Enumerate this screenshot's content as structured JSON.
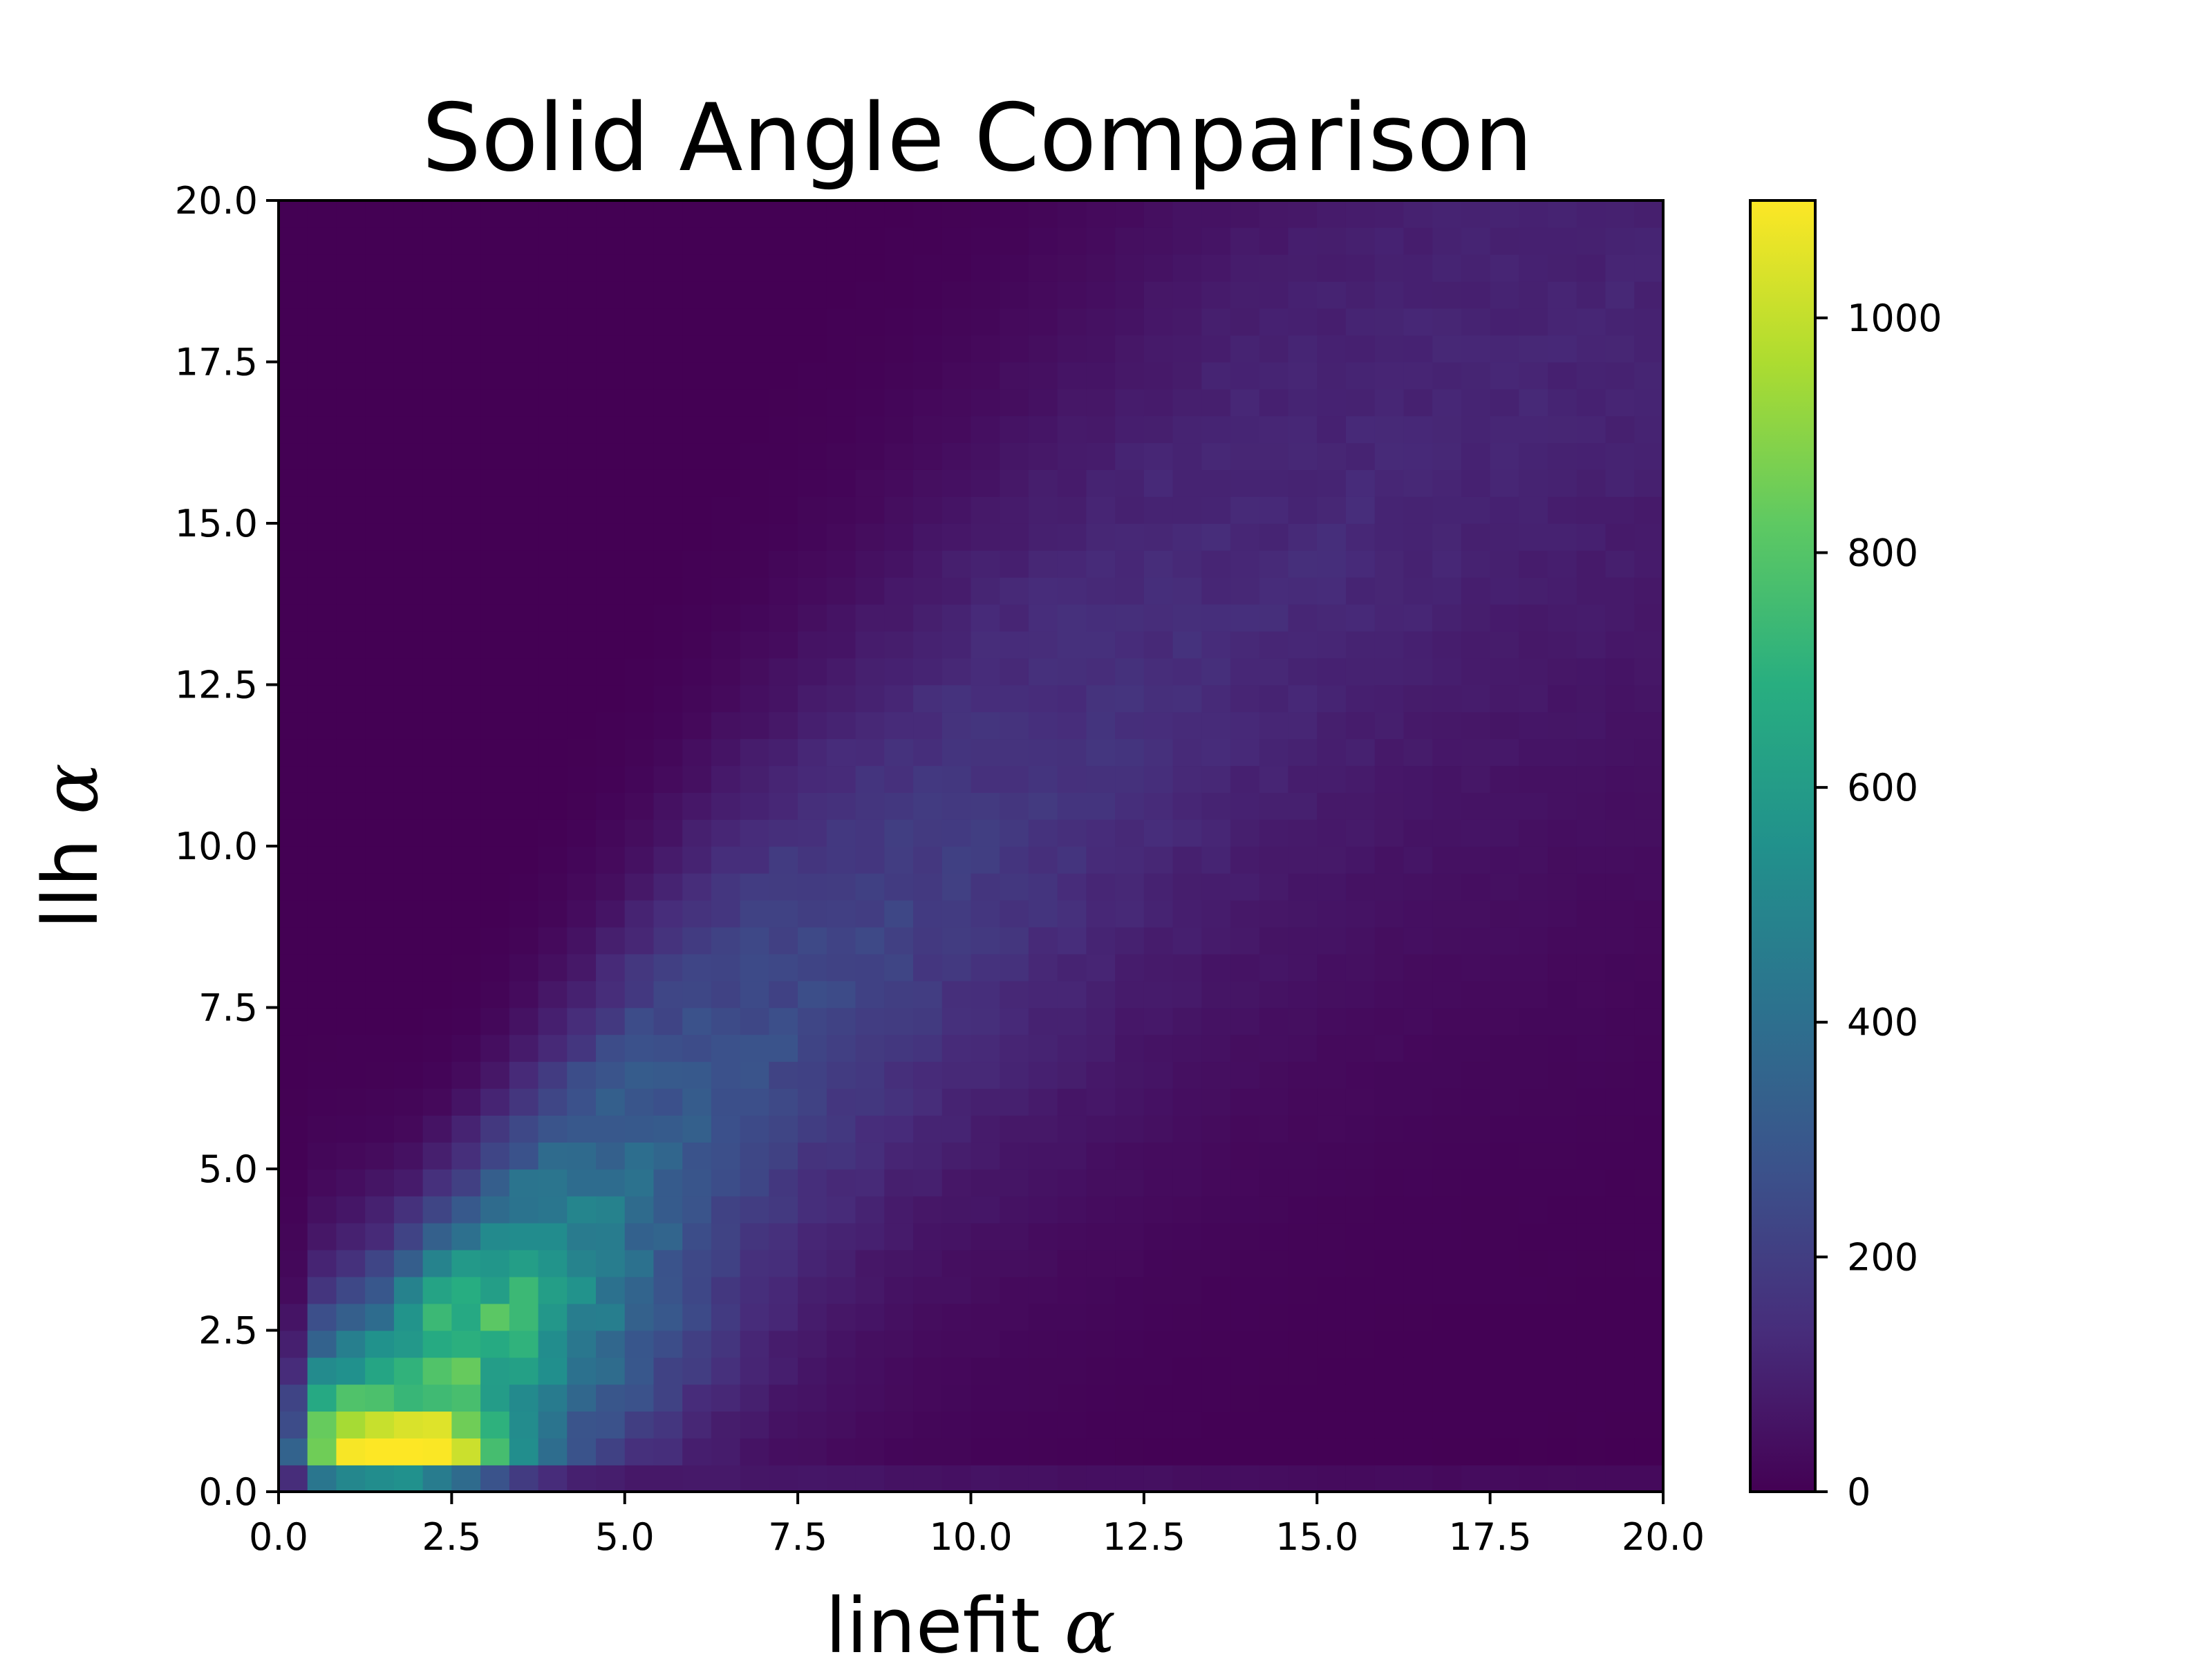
{
  "chart_data": {
    "type": "heatmap",
    "title": "Solid Angle Comparison",
    "xlabel_text": "linefit ",
    "ylabel_text": "llh ",
    "symbol": "α",
    "xlim": [
      0,
      20
    ],
    "ylim": [
      0,
      20
    ],
    "bins": 48,
    "colormap": "viridis",
    "color_range": [
      0,
      1100
    ],
    "x_ticks": [
      "0.0",
      "2.5",
      "5.0",
      "7.5",
      "10.0",
      "12.5",
      "15.0",
      "17.5",
      "20.0"
    ],
    "y_ticks": [
      "0.0",
      "2.5",
      "5.0",
      "7.5",
      "10.0",
      "12.5",
      "15.0",
      "17.5",
      "20.0"
    ],
    "colorbar_ticks": [
      {
        "value": 0,
        "label": "0"
      },
      {
        "value": 200,
        "label": "200"
      },
      {
        "value": 400,
        "label": "400"
      },
      {
        "value": 600,
        "label": "600"
      },
      {
        "value": 800,
        "label": "800"
      },
      {
        "value": 1000,
        "label": "1000"
      }
    ],
    "density_model": {
      "ridge": [
        [
          0.0,
          0.6
        ],
        [
          1.6,
          1.0
        ],
        [
          4.0,
          4.0
        ],
        [
          6.5,
          6.8
        ],
        [
          9.0,
          9.2
        ],
        [
          11.5,
          11.6
        ],
        [
          14.0,
          14.4
        ],
        [
          17.0,
          17.2
        ],
        [
          20.0,
          19.6
        ]
      ],
      "peak": {
        "x": 2.2,
        "y": 0.55,
        "value": 1100
      },
      "bottom_row_value": 110
    }
  }
}
